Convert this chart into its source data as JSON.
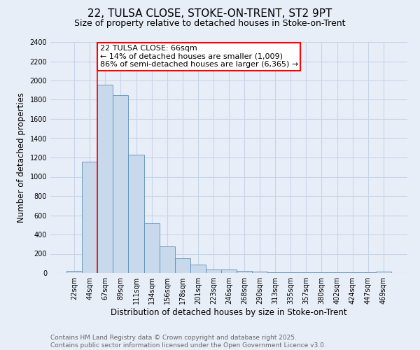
{
  "title": "22, TULSA CLOSE, STOKE-ON-TRENT, ST2 9PT",
  "subtitle": "Size of property relative to detached houses in Stoke-on-Trent",
  "xlabel": "Distribution of detached houses by size in Stoke-on-Trent",
  "ylabel": "Number of detached properties",
  "bin_labels": [
    "22sqm",
    "44sqm",
    "67sqm",
    "89sqm",
    "111sqm",
    "134sqm",
    "156sqm",
    "178sqm",
    "201sqm",
    "223sqm",
    "246sqm",
    "268sqm",
    "290sqm",
    "313sqm",
    "335sqm",
    "357sqm",
    "380sqm",
    "402sqm",
    "424sqm",
    "447sqm",
    "469sqm"
  ],
  "bar_heights": [
    25,
    1155,
    1960,
    1850,
    1230,
    520,
    275,
    150,
    90,
    40,
    40,
    20,
    15,
    5,
    5,
    5,
    5,
    5,
    5,
    5,
    15
  ],
  "bar_color": "#c9d9ec",
  "bar_edge_color": "#5b8db8",
  "vline_x_idx": 2,
  "vline_color": "red",
  "annotation_line1": "22 TULSA CLOSE: 66sqm",
  "annotation_line2": "← 14% of detached houses are smaller (1,009)",
  "annotation_line3": "86% of semi-detached houses are larger (6,365) →",
  "annotation_box_color": "white",
  "annotation_box_edge_color": "red",
  "ylim": [
    0,
    2400
  ],
  "yticks": [
    0,
    200,
    400,
    600,
    800,
    1000,
    1200,
    1400,
    1600,
    1800,
    2000,
    2200,
    2400
  ],
  "grid_color": "#c8d4e8",
  "background_color": "#e8eef8",
  "footer_line1": "Contains HM Land Registry data © Crown copyright and database right 2025.",
  "footer_line2": "Contains public sector information licensed under the Open Government Licence v3.0.",
  "title_fontsize": 11,
  "subtitle_fontsize": 9,
  "xlabel_fontsize": 8.5,
  "ylabel_fontsize": 8.5,
  "tick_fontsize": 7,
  "annotation_fontsize": 8,
  "footer_fontsize": 6.5
}
